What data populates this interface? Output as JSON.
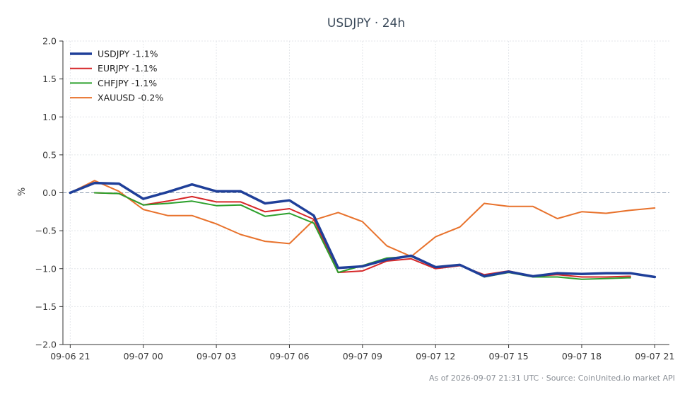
{
  "chart_data": {
    "type": "line",
    "title": "USDJPY · 24h",
    "ylabel": "%",
    "xlabel": "",
    "ylim": [
      -2.0,
      2.0
    ],
    "xlim": [
      -0.3,
      24.6
    ],
    "yticks": [
      "2.0",
      "1.5",
      "1.0",
      "0.5",
      "0.0",
      "−0.5",
      "−1.0",
      "−1.5",
      "−2.0"
    ],
    "ytick_values": [
      2.0,
      1.5,
      1.0,
      0.5,
      0.0,
      -0.5,
      -1.0,
      -1.5,
      -2.0
    ],
    "xticks": [
      "09-06 21",
      "09-07 00",
      "09-07 03",
      "09-07 06",
      "09-07 09",
      "09-07 12",
      "09-07 15",
      "09-07 18",
      "09-07 21"
    ],
    "xtick_hours": [
      0,
      3,
      6,
      9,
      12,
      15,
      18,
      21,
      24
    ],
    "grid": true,
    "zero_line": true,
    "legend_position": "top-left",
    "footer": "As of 2026-09-07 21:31 UTC · Source: CoinUnited.io market API",
    "series": [
      {
        "name": "USDJPY -1.1%",
        "color": "#1f3f99",
        "width": 3.5,
        "x": [
          0,
          1,
          2,
          3,
          4,
          5,
          6,
          7,
          8,
          9,
          10,
          11,
          12,
          13,
          14,
          15,
          16,
          17,
          18,
          19,
          20,
          21,
          22,
          23,
          24
        ],
        "y": [
          0.0,
          0.13,
          0.12,
          -0.08,
          0.01,
          0.11,
          0.02,
          0.02,
          -0.14,
          -0.1,
          -0.3,
          -0.99,
          -0.97,
          -0.88,
          -0.83,
          -0.98,
          -0.95,
          -1.1,
          -1.04,
          -1.1,
          -1.06,
          -1.07,
          -1.06,
          -1.06,
          -1.11
        ]
      },
      {
        "name": "EURJPY -1.1%",
        "color": "#d62728",
        "width": 2,
        "x": [
          1,
          2,
          3,
          4,
          5,
          6,
          7,
          8,
          9,
          10,
          11,
          12,
          13,
          14,
          15,
          16,
          17,
          18,
          19,
          20,
          21,
          22,
          23
        ],
        "y": [
          0.0,
          -0.01,
          -0.16,
          -0.11,
          -0.05,
          -0.12,
          -0.12,
          -0.25,
          -0.21,
          -0.35,
          -1.05,
          -1.03,
          -0.9,
          -0.87,
          -1.0,
          -0.96,
          -1.08,
          -1.03,
          -1.1,
          -1.08,
          -1.11,
          -1.11,
          -1.1
        ]
      },
      {
        "name": "CHFJPY -1.1%",
        "color": "#2ca02c",
        "width": 2,
        "x": [
          1,
          2,
          3,
          4,
          5,
          6,
          7,
          8,
          9,
          10,
          11,
          12,
          13,
          14,
          15,
          16,
          17,
          18,
          19,
          20,
          21,
          22,
          23
        ],
        "y": [
          0.0,
          -0.01,
          -0.16,
          -0.14,
          -0.11,
          -0.17,
          -0.16,
          -0.31,
          -0.27,
          -0.4,
          -1.05,
          -0.96,
          -0.86,
          -0.84,
          -0.98,
          -0.95,
          -1.11,
          -1.05,
          -1.11,
          -1.11,
          -1.14,
          -1.13,
          -1.12
        ]
      },
      {
        "name": "XAUUSD -0.2%",
        "color": "#e8722c",
        "width": 2,
        "x": [
          0,
          1,
          2,
          3,
          4,
          5,
          6,
          7,
          8,
          9,
          10,
          11,
          12,
          13,
          14,
          15,
          16,
          17,
          18,
          19,
          20,
          21,
          22,
          23,
          24
        ],
        "y": [
          0.0,
          0.16,
          0.02,
          -0.22,
          -0.3,
          -0.3,
          -0.41,
          -0.55,
          -0.64,
          -0.67,
          -0.36,
          -0.26,
          -0.38,
          -0.7,
          -0.84,
          -0.58,
          -0.45,
          -0.14,
          -0.18,
          -0.18,
          -0.34,
          -0.25,
          -0.27,
          -0.23,
          -0.2
        ]
      }
    ]
  }
}
